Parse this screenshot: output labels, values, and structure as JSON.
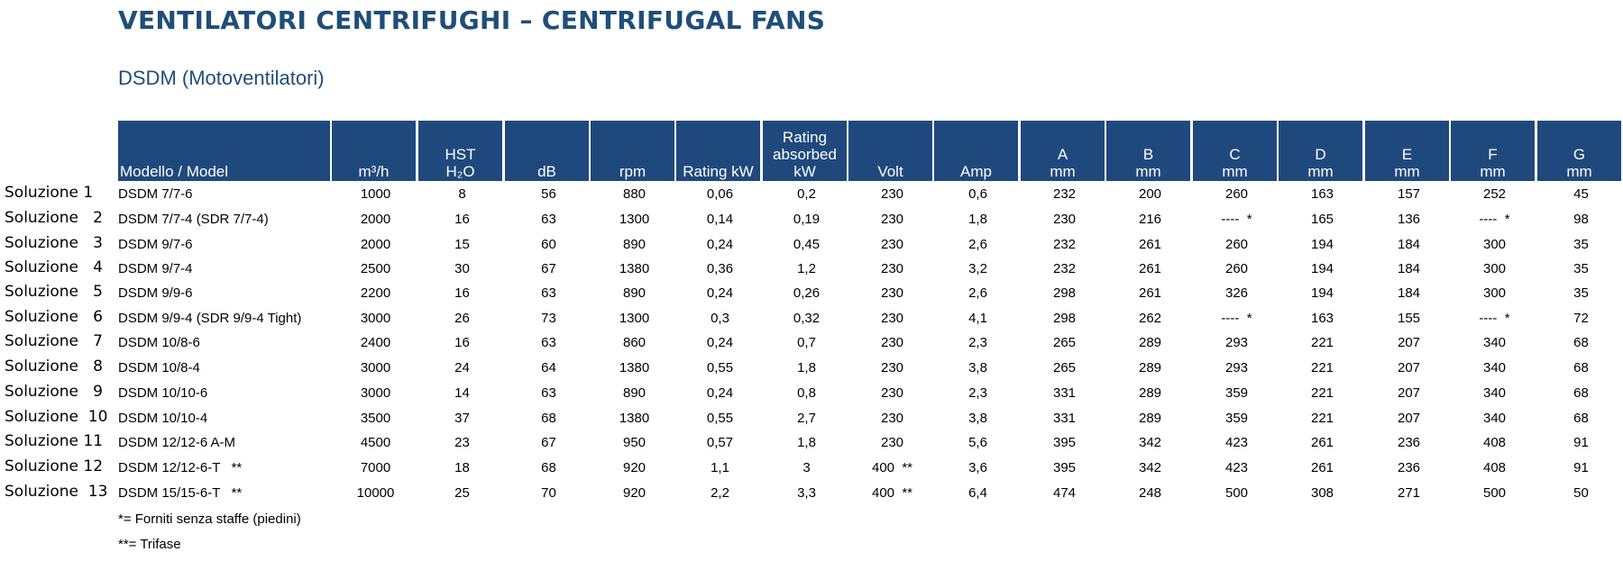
{
  "title": "VENTILATORI CENTRIFUGHI – CENTRIFUGAL FANS",
  "subtitle": "DSDM (Motoventilatori)",
  "headers": [
    [
      "Modello / Model"
    ],
    [
      "m³/h"
    ],
    [
      "HST",
      "H₂O"
    ],
    [
      "dB"
    ],
    [
      "rpm"
    ],
    [
      "Rating  kW"
    ],
    [
      "Rating",
      "absorbed",
      "kW"
    ],
    [
      "Volt"
    ],
    [
      "Amp"
    ],
    [
      "A",
      "mm"
    ],
    [
      "B",
      "mm"
    ],
    [
      "C",
      "mm"
    ],
    [
      "D",
      "mm"
    ],
    [
      "E",
      "mm"
    ],
    [
      "F",
      "mm"
    ],
    [
      "G",
      "mm"
    ]
  ],
  "rows": [
    {
      "label": "Soluzione 1",
      "cells": [
        "DSDM 7/7-6",
        "1000",
        "8",
        "56",
        "880",
        "0,06",
        "0,2",
        "230",
        "0,6",
        "232",
        "200",
        "260",
        "163",
        "157",
        "252",
        "45"
      ]
    },
    {
      "label": "Soluzione   2",
      "cells": [
        "DSDM 7/7-4 (SDR 7/7-4)",
        "2000",
        "16",
        "63",
        "1300",
        "0,14",
        "0,19",
        "230",
        "1,8",
        "230",
        "216",
        "----  *",
        "165",
        "136",
        "----  *",
        "98"
      ]
    },
    {
      "label": "Soluzione   3",
      "cells": [
        "DSDM 9/7-6",
        "2000",
        "15",
        "60",
        "890",
        "0,24",
        "0,45",
        "230",
        "2,6",
        "232",
        "261",
        "260",
        "194",
        "184",
        "300",
        "35"
      ]
    },
    {
      "label": "Soluzione   4",
      "cells": [
        "DSDM 9/7-4",
        "2500",
        "30",
        "67",
        "1380",
        "0,36",
        "1,2",
        "230",
        "3,2",
        "232",
        "261",
        "260",
        "194",
        "184",
        "300",
        "35"
      ]
    },
    {
      "label": "Soluzione   5",
      "cells": [
        "DSDM 9/9-6",
        "2200",
        "16",
        "63",
        "890",
        "0,24",
        "0,26",
        "230",
        "2,6",
        "298",
        "261",
        "326",
        "194",
        "184",
        "300",
        "35"
      ]
    },
    {
      "label": "Soluzione   6",
      "cells": [
        "DSDM 9/9-4 (SDR 9/9-4 Tight)",
        "3000",
        "26",
        "73",
        "1300",
        "0,3",
        "0,32",
        "230",
        "4,1",
        "298",
        "262",
        "----  *",
        "163",
        "155",
        "----  *",
        "72"
      ]
    },
    {
      "label": "Soluzione   7",
      "cells": [
        "DSDM 10/8-6",
        "2400",
        "16",
        "63",
        "860",
        "0,24",
        "0,7",
        "230",
        "2,3",
        "265",
        "289",
        "293",
        "221",
        "207",
        "340",
        "68"
      ]
    },
    {
      "label": "Soluzione   8",
      "cells": [
        "DSDM 10/8-4",
        "3000",
        "24",
        "64",
        "1380",
        "0,55",
        "1,8",
        "230",
        "3,8",
        "265",
        "289",
        "293",
        "221",
        "207",
        "340",
        "68"
      ]
    },
    {
      "label": "Soluzione   9",
      "cells": [
        "DSDM 10/10-6",
        "3000",
        "14",
        "63",
        "890",
        "0,24",
        "0,8",
        "230",
        "2,3",
        "331",
        "289",
        "359",
        "221",
        "207",
        "340",
        "68"
      ]
    },
    {
      "label": "Soluzione  10",
      "cells": [
        "DSDM 10/10-4",
        "3500",
        "37",
        "68",
        "1380",
        "0,55",
        "2,7",
        "230",
        "3,8",
        "331",
        "289",
        "359",
        "221",
        "207",
        "340",
        "68"
      ]
    },
    {
      "label": "Soluzione 11",
      "cells": [
        "DSDM 12/12-6 A-M",
        "4500",
        "23",
        "67",
        "950",
        "0,57",
        "1,8",
        "230",
        "5,6",
        "395",
        "342",
        "423",
        "261",
        "236",
        "408",
        "91"
      ]
    },
    {
      "label": "Soluzione 12",
      "cells": [
        "DSDM 12/12-6-T   **",
        "7000",
        "18",
        "68",
        "920",
        "1,1",
        "3",
        "400  **",
        "3,6",
        "395",
        "342",
        "423",
        "261",
        "236",
        "408",
        "91"
      ]
    },
    {
      "label": "Soluzione  13",
      "cells": [
        "DSDM 15/15-6-T   **",
        "10000",
        "25",
        "70",
        "920",
        "2,2",
        "3,3",
        "400  **",
        "6,4",
        "474",
        "248",
        "500",
        "308",
        "271",
        "500",
        "50"
      ]
    }
  ],
  "notes": [
    "*= Forniti senza staffe (piedini)",
    "**= Trifase"
  ]
}
